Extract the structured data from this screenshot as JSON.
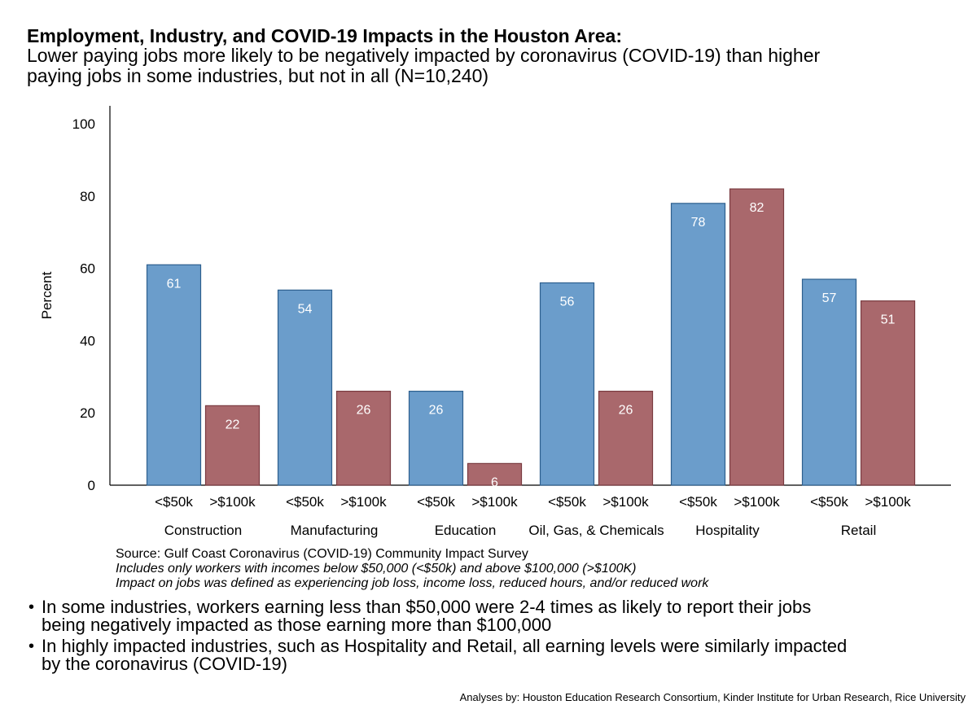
{
  "title": "Employment, Industry, and COVID-19 Impacts in the Houston Area:",
  "subtitle": "Lower paying jobs more likely to be negatively impacted by coronavirus (COVID-19) than higher paying jobs in some industries, but not in all (N=10,240)",
  "notes": {
    "source": "Source: Gulf Coast Coronavirus (COVID-19) Community Impact Survey",
    "line1": "Includes only workers with incomes below $50,000 (<$50k) and above $100,000 (>$100K)",
    "line2": "Impact on jobs was defined as experiencing job loss, income loss, reduced hours, and/or reduced work"
  },
  "bullets": [
    "In some industries, workers earning less than $50,000 were 2-4 times as likely to report their jobs being negatively impacted as those earning more than $100,000",
    "In highly impacted industries, such as Hospitality and Retail, all earning levels were similarly impacted by the coronavirus (COVID-19)"
  ],
  "credit": "Analyses by: Houston Education Research Consortium, Kinder Institute for Urban Research, Rice University",
  "colors": {
    "low": "#6b9dcb",
    "low_border": "#2d5f8e",
    "high": "#a9686c",
    "high_border": "#7a3b40"
  },
  "chart_data": {
    "type": "bar",
    "ylabel": "Percent",
    "ylim": [
      0,
      105
    ],
    "yticks": [
      0,
      20,
      40,
      60,
      80,
      100
    ],
    "grid": false,
    "legend": "none",
    "categories": [
      "Construction",
      "Manufacturing",
      "Education",
      "Oil, Gas, & Chemicals",
      "Hospitality",
      "Retail"
    ],
    "series": [
      {
        "name": "<$50k",
        "values": [
          61,
          54,
          26,
          56,
          78,
          57
        ]
      },
      {
        "name": ">$100k",
        "values": [
          22,
          26,
          6,
          26,
          82,
          51
        ]
      }
    ]
  }
}
